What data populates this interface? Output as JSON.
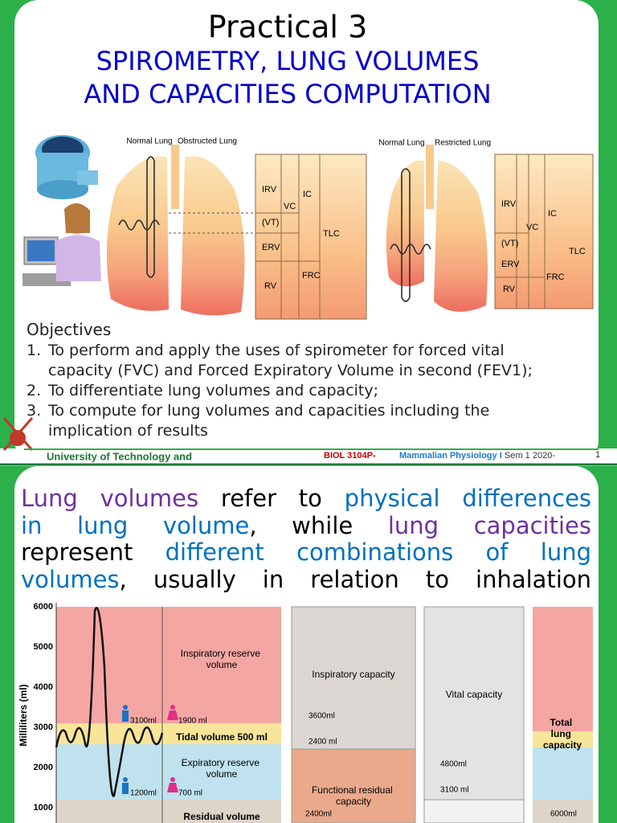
{
  "slide1": {
    "title": "Practical 3",
    "subtitle": [
      "SPIROMETRY, LUNG VOLUMES",
      "AND CAPACITIES COMPUTATION"
    ],
    "diagram": {
      "left_headers": [
        "Normal Lung",
        "Obstructed Lung"
      ],
      "right_headers": [
        "Normal Lung",
        "Restricted Lung"
      ],
      "left_box": {
        "irv": "IRV",
        "ic": "IC",
        "vt": "(VT)",
        "vc": "VC",
        "tlc": "TLC",
        "erv": "ERV",
        "frc": "FRC",
        "rv": "RV"
      },
      "right_box": {
        "irv": "IRV",
        "ic": "IC",
        "vt": "(VT)",
        "vc": "VC",
        "tlc": "TLC",
        "erv": "ERV",
        "frc": "FRC",
        "rv": "RV"
      }
    },
    "objectives": {
      "heading": "Objectives",
      "items": [
        {
          "number": "1.",
          "text": "To perform and apply the uses of spirometer for forced vital capacity (FVC) and Forced Expiratory Volume in second (FEV1);"
        },
        {
          "number": "2.",
          "text": "To differentiate lung volumes and capacity;"
        },
        {
          "number": "3.",
          "text": "To compute for lung volumes and capacities including the implication of results"
        }
      ]
    },
    "footer": {
      "institution": "University of Technology and",
      "course": "BIOL 3104P-",
      "course_name": "Mammalian Physiology I",
      "semester": "Sem 1 2020-",
      "page": "1"
    }
  },
  "slide2": {
    "paragraph": [
      [
        {
          "text": "Lung volumes",
          "color": "#7030a0"
        },
        {
          "text": " refer to ",
          "color": "#000000"
        },
        {
          "text": "physical differences",
          "color": "#0070c0"
        }
      ],
      [
        {
          "text": "in lung volume",
          "color": "#0070c0"
        },
        {
          "text": ", while ",
          "color": "#000000"
        },
        {
          "text": "lung capacities",
          "color": "#7030a0"
        }
      ],
      [
        {
          "text": "represent ",
          "color": "#000000"
        },
        {
          "text": "different combinations of lung",
          "color": "#0070c0"
        }
      ],
      [
        {
          "text": "volumes",
          "color": "#0070c0"
        },
        {
          "text": ", usually in relation to inhalation",
          "color": "#000000"
        }
      ]
    ],
    "figure": {
      "y_axis_label": "Milliliters (ml)",
      "y_ticks": [
        "6000",
        "5000",
        "4000",
        "3000",
        "2000",
        "1000"
      ],
      "volumes": {
        "irv": "Inspiratory reserve volume",
        "irv_male": "3100ml",
        "irv_female": "1900 ml",
        "tidal": "Tidal volume 500 ml",
        "erv": "Expiratory reserve volume",
        "erv_male": "1200ml",
        "erv_female": "700 ml",
        "rv": "Residual volume"
      },
      "capacities": {
        "ic": "Inspiratory capacity",
        "ic_male": "3600ml",
        "ic_female": "2400 ml",
        "frc": "Functional residual capacity",
        "frc_male": "2400ml",
        "vc": "Vital capacity",
        "vc_male": "4800ml",
        "vc_female": "3100 ml",
        "tlc": "Total lung capacity",
        "tlc_male": "6000ml"
      }
    }
  }
}
